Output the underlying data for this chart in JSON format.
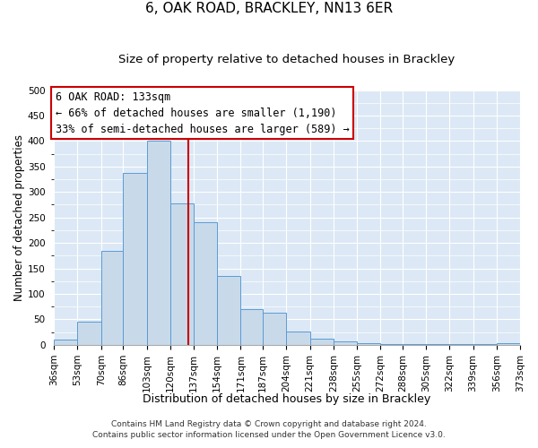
{
  "title1": "6, OAK ROAD, BRACKLEY, NN13 6ER",
  "title2": "Size of property relative to detached houses in Brackley",
  "xlabel": "Distribution of detached houses by size in Brackley",
  "ylabel": "Number of detached properties",
  "bin_edges": [
    36,
    53,
    70,
    86,
    103,
    120,
    137,
    154,
    171,
    187,
    204,
    221,
    238,
    255,
    272,
    288,
    305,
    322,
    339,
    356,
    373
  ],
  "bin_labels": [
    "36sqm",
    "53sqm",
    "70sqm",
    "86sqm",
    "103sqm",
    "120sqm",
    "137sqm",
    "154sqm",
    "171sqm",
    "187sqm",
    "204sqm",
    "221sqm",
    "238sqm",
    "255sqm",
    "272sqm",
    "288sqm",
    "305sqm",
    "322sqm",
    "339sqm",
    "356sqm",
    "373sqm"
  ],
  "counts": [
    10,
    46,
    185,
    338,
    400,
    278,
    240,
    136,
    70,
    63,
    27,
    12,
    6,
    3,
    2,
    2,
    2,
    1,
    1,
    4
  ],
  "bar_color": "#c8daea",
  "bar_edgecolor": "#5b9bd5",
  "property_size": 133,
  "vline_color": "#cc0000",
  "annotation_line1": "6 OAK ROAD: 133sqm",
  "annotation_line2": "← 66% of detached houses are smaller (1,190)",
  "annotation_line3": "33% of semi-detached houses are larger (589) →",
  "annotation_box_edgecolor": "#cc0000",
  "annotation_box_facecolor": "#ffffff",
  "ylim": [
    0,
    500
  ],
  "background_color": "#dce8f5",
  "grid_color": "#ffffff",
  "footer1": "Contains HM Land Registry data © Crown copyright and database right 2024.",
  "footer2": "Contains public sector information licensed under the Open Government Licence v3.0.",
  "title1_fontsize": 11,
  "title2_fontsize": 9.5,
  "xlabel_fontsize": 9,
  "ylabel_fontsize": 8.5,
  "tick_fontsize": 7.5,
  "annotation_fontsize": 8.5,
  "footer_fontsize": 6.5
}
